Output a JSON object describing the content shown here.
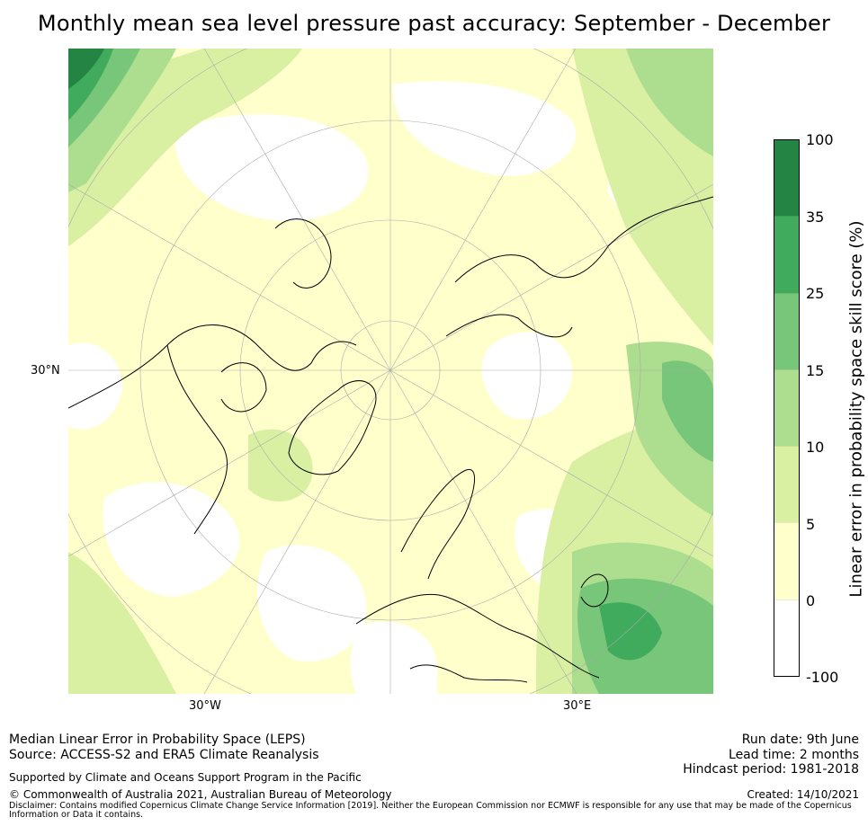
{
  "title": "Monthly mean sea level pressure past accuracy: September - December",
  "map": {
    "lat_label": "30°N",
    "lon_labels": [
      "30°W",
      "30°E"
    ],
    "colors": {
      "white": "#ffffff",
      "c0_5": "#ffffcc",
      "c5_10": "#d9f0a3",
      "c10_15": "#addd8e",
      "c15_25": "#78c679",
      "c25_35": "#41ab5d",
      "c35_100": "#238443",
      "coast": "#000000",
      "grid": "#aaaaaa"
    }
  },
  "colorbar": {
    "title": "Linear error in probability space skill score (%)",
    "ticks": [
      "100",
      "35",
      "25",
      "15",
      "10",
      "5",
      "0",
      "-100"
    ],
    "colors_top_to_bottom": [
      "#238443",
      "#41ab5d",
      "#78c679",
      "#addd8e",
      "#d9f0a3",
      "#ffffcc",
      "#ffffff"
    ]
  },
  "footer": {
    "left_line1": "Median Linear Error in Probability Space (LEPS)",
    "left_line2": "Source: ACCESS-S2 and ERA5 Climate Reanalysis",
    "supported": "Supported by Climate and Oceans Support Program in the Pacific",
    "copyright": "© Commonwealth of Australia 2021, Australian Bureau of Meteorology",
    "run_date": "Run date: 9th June",
    "lead_time": "Lead time: 2 months",
    "hindcast": "Hindcast period: 1981-2018",
    "created": "Created: 14/10/2021",
    "disclaimer": "Disclaimer: Contains modified Copernicus Climate Change Service Information [2019]. Neither the European Commission nor ECMWF is responsible for any use that may be made of the Copernicus Information or Data it contains."
  }
}
